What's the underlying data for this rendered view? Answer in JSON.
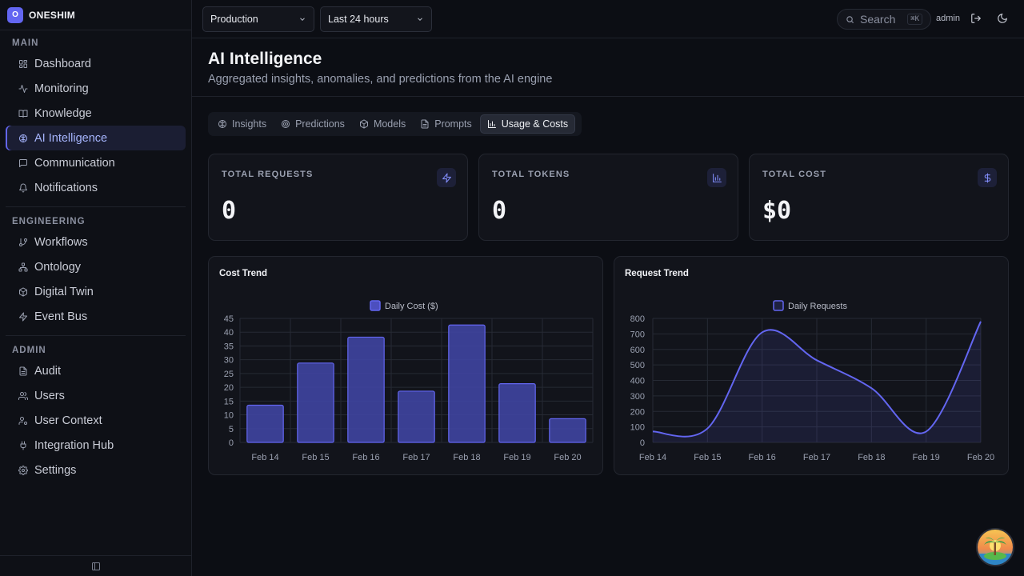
{
  "brand": {
    "logo_letter": "O",
    "name": "ONESHIM"
  },
  "sidebar": {
    "sections": [
      {
        "label": "MAIN",
        "items": [
          {
            "label": "Dashboard",
            "icon": "dashboard-icon"
          },
          {
            "label": "Monitoring",
            "icon": "activity-icon"
          },
          {
            "label": "Knowledge",
            "icon": "book-icon"
          },
          {
            "label": "AI Intelligence",
            "icon": "brain-icon",
            "active": true
          },
          {
            "label": "Communication",
            "icon": "message-icon"
          },
          {
            "label": "Notifications",
            "icon": "bell-icon"
          }
        ]
      },
      {
        "label": "ENGINEERING",
        "items": [
          {
            "label": "Workflows",
            "icon": "git-branch-icon"
          },
          {
            "label": "Ontology",
            "icon": "network-icon"
          },
          {
            "label": "Digital Twin",
            "icon": "cube-icon"
          },
          {
            "label": "Event Bus",
            "icon": "zap-icon"
          }
        ]
      },
      {
        "label": "ADMIN",
        "items": [
          {
            "label": "Audit",
            "icon": "file-text-icon"
          },
          {
            "label": "Users",
            "icon": "users-icon"
          },
          {
            "label": "User Context",
            "icon": "user-cog-icon"
          },
          {
            "label": "Integration Hub",
            "icon": "plug-icon"
          },
          {
            "label": "Settings",
            "icon": "gear-icon"
          }
        ]
      }
    ]
  },
  "topbar": {
    "environment": "Production",
    "time_range": "Last 24 hours",
    "search_placeholder": "Search",
    "search_shortcut": "⌘K",
    "user": "admin"
  },
  "header": {
    "title": "AI Intelligence",
    "subtitle": "Aggregated insights, anomalies, and predictions from the AI engine"
  },
  "tabs": [
    {
      "label": "Insights",
      "icon": "brain-icon"
    },
    {
      "label": "Predictions",
      "icon": "target-icon"
    },
    {
      "label": "Models",
      "icon": "cube-icon"
    },
    {
      "label": "Prompts",
      "icon": "file-text-icon"
    },
    {
      "label": "Usage & Costs",
      "icon": "bar-chart-icon",
      "active": true
    }
  ],
  "stats": [
    {
      "label": "TOTAL REQUESTS",
      "value": "0",
      "icon": "zap-icon"
    },
    {
      "label": "TOTAL TOKENS",
      "value": "0",
      "icon": "bar-chart-icon"
    },
    {
      "label": "TOTAL COST",
      "value": "$0",
      "icon": "dollar-icon"
    }
  ],
  "colors": {
    "accent": "#6366f1",
    "accent_light": "#818cf8"
  },
  "chart_data": [
    {
      "type": "bar",
      "title": "Cost Trend",
      "categories": [
        "Feb 14",
        "Feb 15",
        "Feb 16",
        "Feb 17",
        "Feb 18",
        "Feb 19",
        "Feb 20"
      ],
      "series": [
        {
          "name": "Daily Cost ($)",
          "values": [
            13.5,
            28.8,
            38.2,
            18.6,
            42.6,
            21.3,
            8.6
          ]
        }
      ],
      "ylim": [
        0,
        45
      ],
      "yticks": [
        0,
        5,
        10,
        15,
        20,
        25,
        30,
        35,
        40,
        45
      ],
      "grid": true,
      "legend": "top-center"
    },
    {
      "type": "area",
      "title": "Request Trend",
      "categories": [
        "Feb 14",
        "Feb 15",
        "Feb 16",
        "Feb 17",
        "Feb 18",
        "Feb 19",
        "Feb 20"
      ],
      "series": [
        {
          "name": "Daily Requests",
          "values": [
            70,
            90,
            710,
            530,
            350,
            70,
            780
          ]
        }
      ],
      "ylim": [
        0,
        800
      ],
      "yticks": [
        0,
        100,
        200,
        300,
        400,
        500,
        600,
        700,
        800
      ],
      "grid": true,
      "legend": "top-center"
    }
  ]
}
